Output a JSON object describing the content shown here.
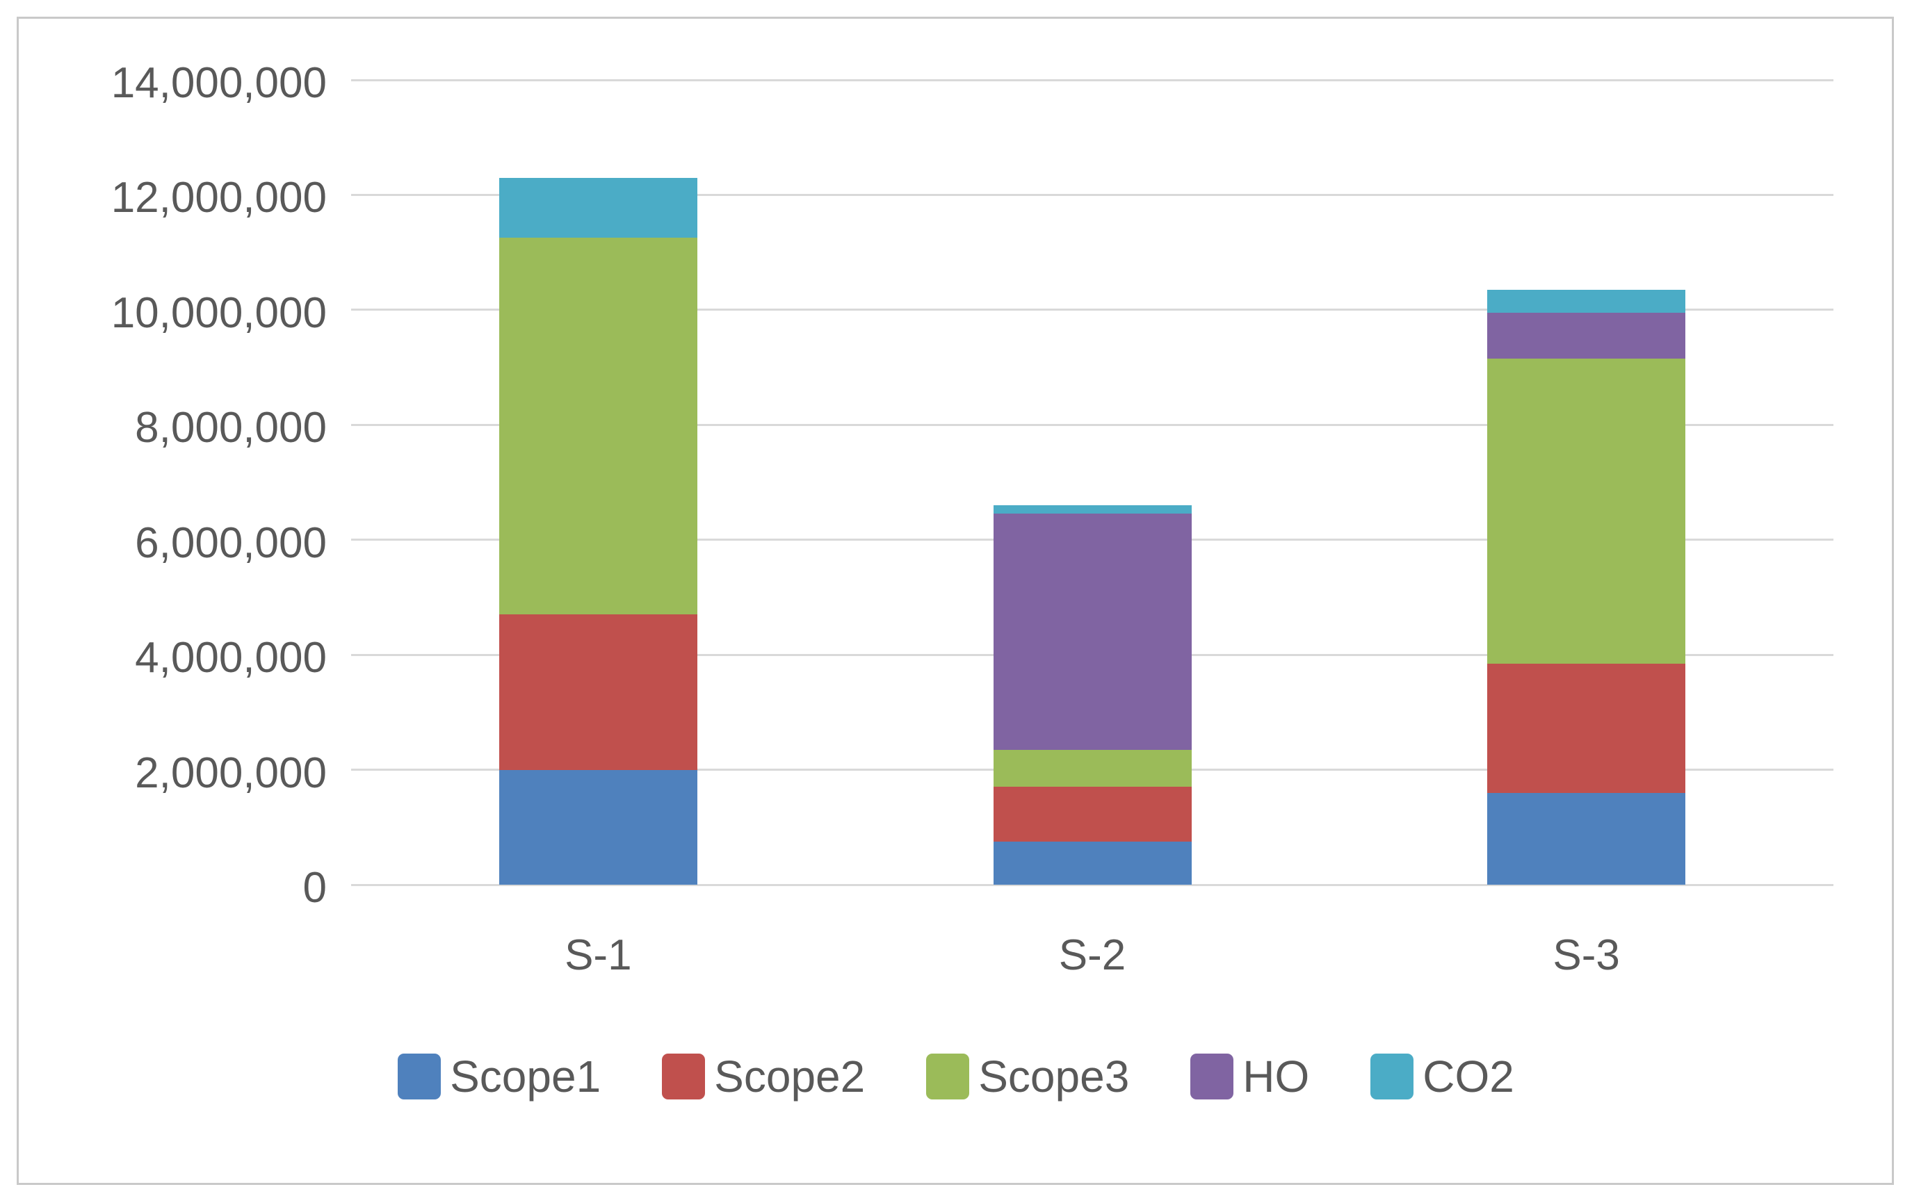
{
  "chart_data": {
    "type": "bar",
    "stacked": true,
    "title": "",
    "xlabel": "",
    "ylabel": "",
    "categories": [
      "S-1",
      "S-2",
      "S-3"
    ],
    "series": [
      {
        "name": "Scope1",
        "color": "#4F81BD",
        "values": [
          2000000,
          750000,
          1600000
        ]
      },
      {
        "name": "Scope2",
        "color": "#C0504D",
        "values": [
          2700000,
          950000,
          2250000
        ]
      },
      {
        "name": "Scope3",
        "color": "#9BBB59",
        "values": [
          6550000,
          650000,
          5300000
        ]
      },
      {
        "name": "HO",
        "color": "#8064A2",
        "values": [
          0,
          4100000,
          800000
        ]
      },
      {
        "name": "CO2",
        "color": "#4BACC6",
        "values": [
          1050000,
          150000,
          400000
        ]
      }
    ],
    "stack_totals": [
      12300000,
      6600000,
      10350000
    ],
    "ylim": [
      0,
      14000000
    ],
    "ytick_step": 2000000,
    "ytick_labels": [
      "0",
      "2,000,000",
      "4,000,000",
      "6,000,000",
      "8,000,000",
      "10,000,000",
      "12,000,000",
      "14,000,000"
    ],
    "grid": true,
    "legend_position": "bottom",
    "colors": {
      "tick_text": "#595959",
      "gridline": "#d9d9d9",
      "frame_border": "#c9c9c9",
      "background": "#ffffff"
    }
  }
}
